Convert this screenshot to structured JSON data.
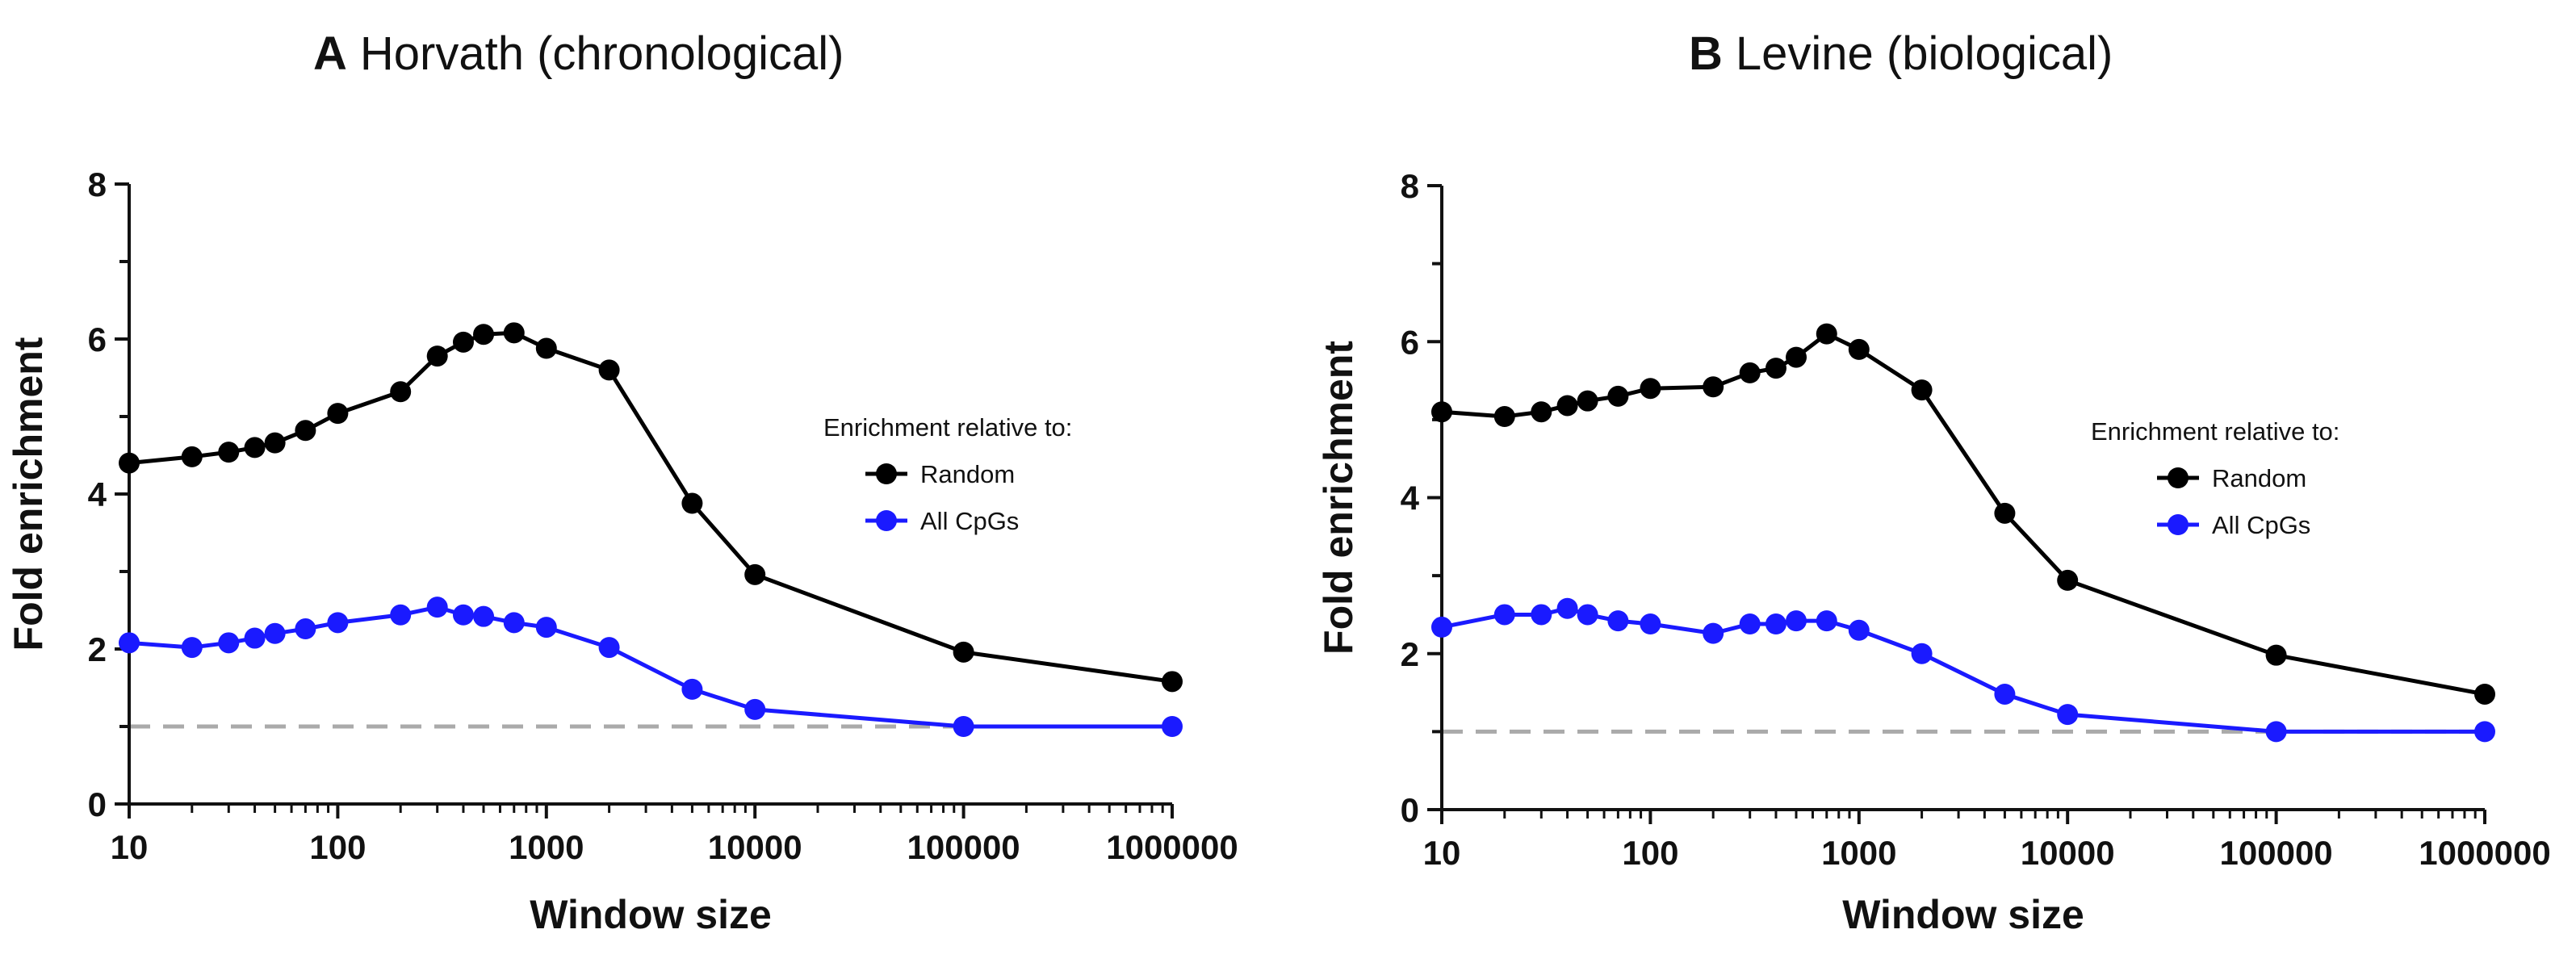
{
  "chart_data": [
    {
      "type": "line",
      "panel_letter": "A",
      "title": "Horvath (chronological)",
      "xlabel": "Window size",
      "ylabel": "Fold enrichment",
      "xscale": "log",
      "xlim": [
        10,
        1000000
      ],
      "ylim": [
        0,
        8
      ],
      "xticks": [
        "10",
        "100",
        "1000",
        "10000",
        "100000",
        "1000000"
      ],
      "yticks": [
        "0",
        "2",
        "4",
        "6",
        "8"
      ],
      "reference_line": 1,
      "legend_title": "Enrichment relative to:",
      "x": [
        10,
        20,
        30,
        40,
        50,
        70,
        100,
        200,
        300,
        400,
        500,
        700,
        1000,
        2000,
        5000,
        10000,
        100000,
        1000000
      ],
      "series": [
        {
          "name": "Random",
          "color": "#000000",
          "values": [
            4.4,
            4.48,
            4.54,
            4.6,
            4.66,
            4.82,
            5.04,
            5.32,
            5.78,
            5.96,
            6.06,
            6.08,
            5.88,
            5.6,
            3.88,
            2.96,
            1.96,
            1.58
          ]
        },
        {
          "name": "All CpGs",
          "color": "#1a1aff",
          "values": [
            2.08,
            2.02,
            2.08,
            2.14,
            2.2,
            2.26,
            2.34,
            2.44,
            2.54,
            2.44,
            2.42,
            2.34,
            2.28,
            2.02,
            1.48,
            1.22,
            1.0,
            1.0
          ]
        }
      ]
    },
    {
      "type": "line",
      "panel_letter": "B",
      "title": "Levine (biological)",
      "xlabel": "Window size",
      "ylabel": "Fold enrichment",
      "xscale": "log",
      "xlim": [
        10,
        1000000
      ],
      "ylim": [
        0,
        8
      ],
      "xticks": [
        "10",
        "100",
        "1000",
        "10000",
        "100000",
        "1000000"
      ],
      "yticks": [
        "0",
        "2",
        "4",
        "6",
        "8"
      ],
      "reference_line": 1,
      "legend_title": "Enrichment relative to:",
      "x": [
        10,
        20,
        30,
        40,
        50,
        70,
        100,
        200,
        300,
        400,
        500,
        700,
        1000,
        2000,
        5000,
        10000,
        100000,
        1000000
      ],
      "series": [
        {
          "name": "Random",
          "color": "#000000",
          "values": [
            5.1,
            5.04,
            5.1,
            5.18,
            5.24,
            5.3,
            5.4,
            5.42,
            5.6,
            5.66,
            5.8,
            6.1,
            5.9,
            5.38,
            3.8,
            2.94,
            1.98,
            1.48
          ]
        },
        {
          "name": "All CpGs",
          "color": "#1a1aff",
          "values": [
            2.34,
            2.5,
            2.5,
            2.58,
            2.5,
            2.42,
            2.38,
            2.26,
            2.38,
            2.38,
            2.42,
            2.42,
            2.3,
            2.0,
            1.48,
            1.22,
            1.0,
            1.0
          ]
        }
      ]
    }
  ],
  "colors": {
    "reference_line": "#aaaaaa",
    "axis": "#111111"
  }
}
